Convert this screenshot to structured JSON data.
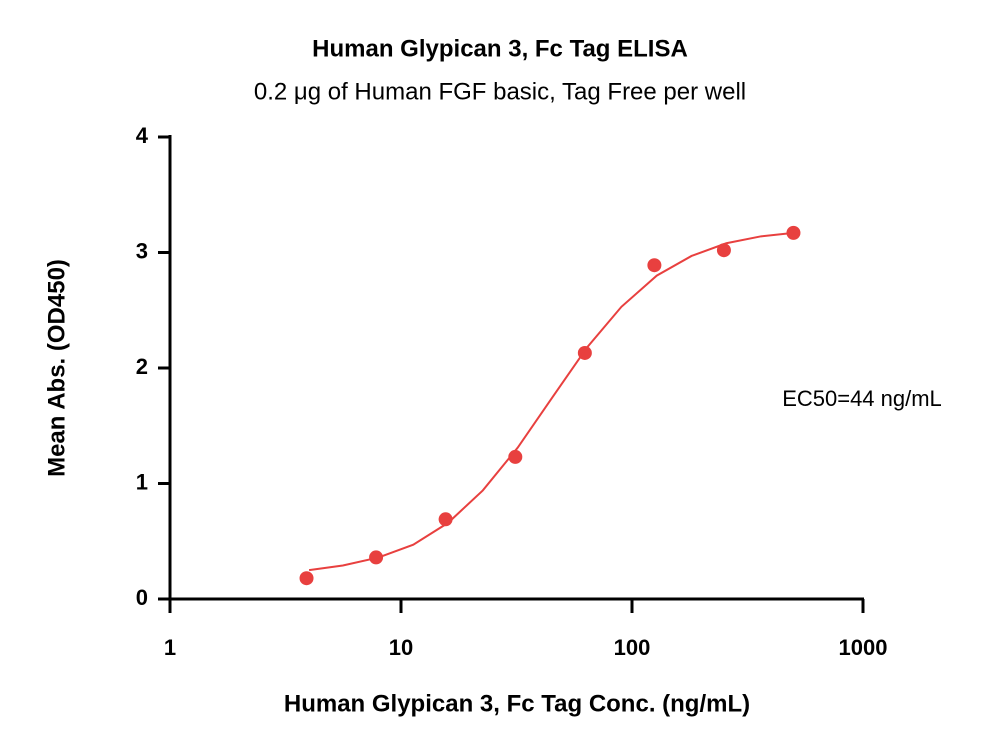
{
  "chart_data": {
    "type": "scatter",
    "title": "Human Glypican 3, Fc Tag ELISA",
    "subtitle": "0.2 μg of Human FGF basic, Tag Free per well",
    "x_label": "Human Glypican 3, Fc Tag Conc. (ng/mL)",
    "y_label": "Mean Abs. (OD450)",
    "annotation": "EC50=44 ng/mL",
    "xscale": "log",
    "xlim": [
      1,
      1000
    ],
    "xticks": [
      1,
      10,
      100,
      1000
    ],
    "ylim": [
      0,
      4
    ],
    "yticks": [
      0,
      1,
      2,
      3,
      4
    ],
    "grid": false,
    "series": [
      {
        "type": "scatter",
        "color": "#e8403f",
        "x": [
          3.9,
          7.8,
          15.6,
          31.25,
          62.5,
          125,
          250,
          500
        ],
        "values": [
          0.18,
          0.36,
          0.69,
          1.23,
          2.13,
          2.89,
          3.02,
          3.17
        ]
      },
      {
        "type": "line",
        "color": "#e8403f",
        "x": [
          4,
          5.6,
          8,
          11.3,
          16,
          22.6,
          32,
          45,
          64,
          90,
          128,
          181,
          256,
          362,
          500
        ],
        "values": [
          0.25,
          0.29,
          0.36,
          0.47,
          0.66,
          0.94,
          1.31,
          1.74,
          2.18,
          2.53,
          2.8,
          2.97,
          3.08,
          3.14,
          3.17
        ]
      }
    ]
  }
}
